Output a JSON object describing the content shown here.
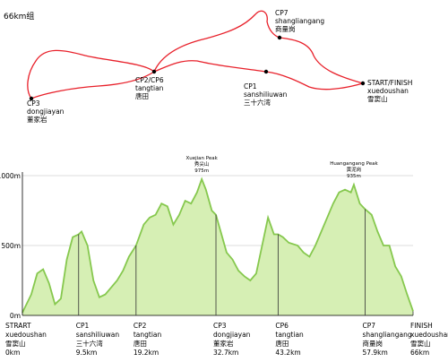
{
  "title": "66km组",
  "map": {
    "labels": [
      {
        "lines": [
          "CP7",
          "shangliangang",
          "商量岗"
        ]
      },
      {
        "lines": [
          "START/FINISH",
          "xuedoushan",
          "雪窦山"
        ]
      },
      {
        "lines": [
          "CP1",
          "sanshiliuwan",
          "三十六湾"
        ]
      },
      {
        "lines": [
          "CP2/CP6",
          "tangtian",
          "唐田"
        ]
      },
      {
        "lines": [
          "CP3",
          "dongjiayan",
          "董家岩"
        ]
      }
    ]
  },
  "chart_data": {
    "type": "area",
    "color": "#86c84e",
    "fill": "#d6efb4",
    "grid": true,
    "xlim": [
      0,
      66
    ],
    "ylim": [
      0,
      1000
    ],
    "yticks": [
      {
        "value": 0,
        "label": "0m"
      },
      {
        "value": 500,
        "label": "500m"
      },
      {
        "value": 1000,
        "label": "1000m"
      }
    ],
    "x": [
      0,
      1.5,
      2.5,
      3.5,
      4.5,
      5.5,
      6.5,
      7.5,
      8.5,
      9.5,
      10,
      11,
      12,
      13,
      14,
      15,
      16,
      17,
      18,
      19.2,
      20.5,
      21.5,
      22.5,
      23.5,
      24.5,
      25.5,
      26.5,
      27.5,
      28.5,
      29.5,
      30.3,
      31,
      32,
      32.7,
      33.5,
      34.5,
      35.5,
      36.5,
      37.5,
      38.5,
      39.5,
      40.5,
      41.5,
      42.5,
      43.2,
      44,
      45,
      46.5,
      47.5,
      48.5,
      49.5,
      50.5,
      51.5,
      52.5,
      53.5,
      54.5,
      55.5,
      56,
      57,
      57.9,
      59,
      60,
      61,
      62,
      63,
      64,
      65,
      66
    ],
    "values": [
      20,
      150,
      300,
      330,
      230,
      80,
      120,
      400,
      560,
      580,
      600,
      500,
      250,
      130,
      150,
      200,
      250,
      320,
      420,
      500,
      650,
      700,
      720,
      800,
      780,
      650,
      720,
      820,
      800,
      880,
      975,
      900,
      750,
      720,
      600,
      450,
      400,
      320,
      280,
      250,
      300,
      500,
      700,
      580,
      580,
      560,
      520,
      500,
      450,
      420,
      500,
      600,
      700,
      800,
      880,
      900,
      880,
      935,
      800,
      760,
      720,
      600,
      500,
      500,
      350,
      280,
      150,
      30
    ],
    "annotations": [
      {
        "x": 30.3,
        "label": "Xuejian Peak",
        "label_cn": "秀尖山",
        "value": 975,
        "value_label": "975m"
      },
      {
        "x": 56,
        "label": "Huangangang Peak",
        "label_cn": "黄泥岗",
        "value": 935,
        "value_label": "935m"
      }
    ],
    "checkpoints": [
      {
        "name": "STRART",
        "pinyin": "xuedoushan",
        "name_cn": "雪窦山",
        "km": 0,
        "km_label": "0km"
      },
      {
        "name": "CP1",
        "pinyin": "sanshiliuwan",
        "name_cn": "三十六湾",
        "km": 9.5,
        "km_label": "9.5km"
      },
      {
        "name": "CP2",
        "pinyin": "tangtian",
        "name_cn": "唐田",
        "km": 19.2,
        "km_label": "19.2km"
      },
      {
        "name": "CP3",
        "pinyin": "dongjiayan",
        "name_cn": "董家岩",
        "km": 32.7,
        "km_label": "32.7km"
      },
      {
        "name": "CP6",
        "pinyin": "tangtian",
        "name_cn": "唐田",
        "km": 43.2,
        "km_label": "43.2km"
      },
      {
        "name": "CP7",
        "pinyin": "shangliangang",
        "name_cn": "商量岗",
        "km": 57.9,
        "km_label": "57.9km"
      },
      {
        "name": "FINISH",
        "pinyin": "xuedoushan",
        "name_cn": "雪窦山",
        "km": 66,
        "km_label": "66km"
      }
    ]
  }
}
